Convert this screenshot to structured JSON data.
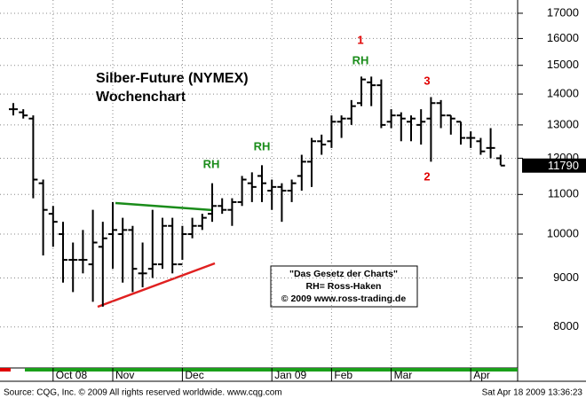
{
  "chart_data": {
    "type": "ohlc",
    "title": "Silber-Future (NYMEX)",
    "subtitle": "Wochenchart",
    "color": "#000000",
    "log_scale": true,
    "grid": true,
    "categories": [
      null,
      null,
      null,
      null,
      "Oct 08",
      null,
      null,
      null,
      null,
      null,
      "Nov",
      null,
      null,
      null,
      null,
      null,
      null,
      "Dec",
      null,
      null,
      null,
      null,
      null,
      null,
      null,
      null,
      "Jan 09",
      null,
      null,
      null,
      null,
      null,
      "Feb",
      null,
      null,
      null,
      null,
      null,
      "Mar",
      null,
      null,
      null,
      null,
      null,
      null,
      null,
      "Apr",
      null,
      null,
      null
    ],
    "open": [
      13500,
      13400,
      13200,
      11300,
      10500,
      10000,
      9400,
      9400,
      9300,
      9700,
      10000,
      10000,
      10100,
      9100,
      9200,
      9300,
      10200,
      9300,
      10000,
      10200,
      10500,
      10700,
      10600,
      10800,
      11300,
      11500,
      11100,
      11200,
      11100,
      11500,
      11900,
      12500,
      12500,
      13100,
      13200,
      13700,
      14400,
      14300,
      13100,
      13300,
      13100,
      13000,
      13200,
      13700,
      13300,
      13100,
      12600,
      12500,
      12300,
      12000
    ],
    "high": [
      13700,
      13500,
      13300,
      11400,
      10700,
      10300,
      9800,
      10100,
      10600,
      10300,
      10800,
      10400,
      10200,
      9800,
      10600,
      10400,
      10400,
      10200,
      10400,
      10500,
      11300,
      10900,
      10900,
      11500,
      11600,
      11800,
      11400,
      11300,
      11400,
      12100,
      12600,
      12700,
      13300,
      13300,
      13800,
      14600,
      14600,
      14500,
      13500,
      13400,
      13300,
      13500,
      13900,
      13800,
      13300,
      13100,
      12800,
      12600,
      12900,
      12100
    ],
    "low": [
      13300,
      13200,
      10900,
      9500,
      9700,
      8900,
      8700,
      9100,
      8500,
      8400,
      9200,
      8900,
      8700,
      8800,
      9000,
      9200,
      9100,
      9400,
      9900,
      10100,
      10300,
      10500,
      10200,
      10700,
      10800,
      10800,
      10600,
      10300,
      10800,
      11100,
      11200,
      12100,
      12300,
      12600,
      13000,
      13600,
      13600,
      12900,
      12900,
      12500,
      12500,
      12400,
      11900,
      12900,
      12700,
      12400,
      12300,
      12100,
      12000,
      11800
    ],
    "close": [
      13500,
      13300,
      11400,
      10600,
      10300,
      9400,
      9400,
      9400,
      9800,
      9900,
      10100,
      10100,
      9200,
      9100,
      9300,
      10200,
      9300,
      10000,
      10200,
      10400,
      10700,
      10600,
      10800,
      11400,
      11200,
      11300,
      11200,
      11100,
      11300,
      11900,
      12500,
      12400,
      13100,
      13200,
      13600,
      14500,
      14300,
      13000,
      13300,
      13200,
      13200,
      13100,
      13700,
      13300,
      13200,
      12600,
      12600,
      12200,
      12300,
      11790
    ],
    "last_price": 11790,
    "ylim": [
      7250,
      17550
    ],
    "yticks": [
      8000,
      9000,
      10000,
      11000,
      12000,
      13000,
      14000,
      15000,
      16000,
      17000
    ],
    "annotations": [
      {
        "text": "RH",
        "color": "#1a8c1a"
      },
      {
        "text": "RH",
        "color": "#1a8c1a"
      },
      {
        "text": "RH",
        "color": "#1a8c1a"
      },
      {
        "text": "1",
        "color": "#e00000"
      },
      {
        "text": "3",
        "color": "#e00000"
      },
      {
        "text": "2",
        "color": "#e00000"
      }
    ],
    "note_lines": [
      "\"Das Gesetz der Charts\"",
      "RH= Ross-Haken",
      "© 2009  www.ross-trading.de"
    ],
    "source": "Source: CQG, Inc. © 2009 All rights reserved worldwide. www.cqg.com",
    "timestamp": "Sat Apr 18 2009 13:36:23"
  }
}
